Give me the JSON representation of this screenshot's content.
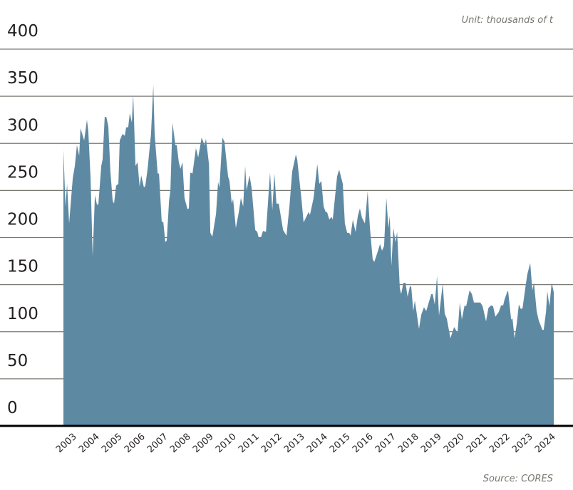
{
  "chart_data": {
    "type": "area",
    "title": "",
    "unit_note": "Unit: thousands of t",
    "source": "Source: CORES",
    "xlabel": "",
    "ylabel": "",
    "ylim": [
      0,
      400
    ],
    "yticks": [
      0,
      50,
      100,
      150,
      200,
      250,
      300,
      350,
      400
    ],
    "xticks": [
      "2003",
      "2004",
      "2005",
      "2006",
      "2007",
      "2008",
      "2009",
      "2010",
      "2011",
      "2012",
      "2013",
      "2014",
      "2015",
      "2016",
      "2017",
      "2018",
      "2019",
      "2020",
      "2021",
      "2022",
      "2023",
      "2024"
    ],
    "grid": true,
    "fill_color": "#5e89a3",
    "grid_color": "#7a7a72",
    "series": [
      {
        "points": [
          [
            2003.0,
            293
          ],
          [
            2003.09,
            233
          ],
          [
            2003.16,
            257
          ],
          [
            2003.25,
            215
          ],
          [
            2003.41,
            263
          ],
          [
            2003.5,
            276
          ],
          [
            2003.59,
            298
          ],
          [
            2003.69,
            287
          ],
          [
            2003.75,
            316
          ],
          [
            2003.91,
            303
          ],
          [
            2004.03,
            325
          ],
          [
            2004.09,
            313
          ],
          [
            2004.19,
            263
          ],
          [
            2004.28,
            180
          ],
          [
            2004.38,
            245
          ],
          [
            2004.47,
            235
          ],
          [
            2004.53,
            235
          ],
          [
            2004.66,
            276
          ],
          [
            2004.72,
            283
          ],
          [
            2004.81,
            328
          ],
          [
            2004.88,
            328
          ],
          [
            2004.97,
            318
          ],
          [
            2005.06,
            270
          ],
          [
            2005.16,
            239
          ],
          [
            2005.22,
            236
          ],
          [
            2005.31,
            255
          ],
          [
            2005.41,
            257
          ],
          [
            2005.47,
            303
          ],
          [
            2005.59,
            310
          ],
          [
            2005.69,
            308
          ],
          [
            2005.75,
            317
          ],
          [
            2005.84,
            317
          ],
          [
            2005.91,
            332
          ],
          [
            2006.0,
            322
          ],
          [
            2006.06,
            352
          ],
          [
            2006.16,
            276
          ],
          [
            2006.25,
            280
          ],
          [
            2006.34,
            254
          ],
          [
            2006.41,
            266
          ],
          [
            2006.53,
            253
          ],
          [
            2006.59,
            255
          ],
          [
            2006.69,
            273
          ],
          [
            2006.84,
            310
          ],
          [
            2006.94,
            362
          ],
          [
            2007.0,
            310
          ],
          [
            2007.13,
            268
          ],
          [
            2007.19,
            268
          ],
          [
            2007.31,
            217
          ],
          [
            2007.38,
            216
          ],
          [
            2007.47,
            195
          ],
          [
            2007.53,
            197
          ],
          [
            2007.63,
            239
          ],
          [
            2007.69,
            250
          ],
          [
            2007.78,
            322
          ],
          [
            2007.91,
            298
          ],
          [
            2007.97,
            298
          ],
          [
            2008.06,
            280
          ],
          [
            2008.13,
            273
          ],
          [
            2008.22,
            280
          ],
          [
            2008.31,
            242
          ],
          [
            2008.44,
            230
          ],
          [
            2008.5,
            231
          ],
          [
            2008.56,
            269
          ],
          [
            2008.66,
            268
          ],
          [
            2008.81,
            295
          ],
          [
            2008.91,
            285
          ],
          [
            2009.06,
            306
          ],
          [
            2009.19,
            298
          ],
          [
            2009.25,
            305
          ],
          [
            2009.38,
            278
          ],
          [
            2009.44,
            205
          ],
          [
            2009.53,
            201
          ],
          [
            2009.69,
            225
          ],
          [
            2009.78,
            259
          ],
          [
            2009.84,
            253
          ],
          [
            2009.97,
            306
          ],
          [
            2010.06,
            302
          ],
          [
            2010.22,
            265
          ],
          [
            2010.28,
            260
          ],
          [
            2010.38,
            236
          ],
          [
            2010.44,
            241
          ],
          [
            2010.56,
            210
          ],
          [
            2010.69,
            227
          ],
          [
            2010.78,
            242
          ],
          [
            2010.88,
            233
          ],
          [
            2010.97,
            276
          ],
          [
            2011.03,
            250
          ],
          [
            2011.16,
            266
          ],
          [
            2011.25,
            253
          ],
          [
            2011.41,
            208
          ],
          [
            2011.5,
            206
          ],
          [
            2011.56,
            200
          ],
          [
            2011.66,
            200
          ],
          [
            2011.75,
            207
          ],
          [
            2011.88,
            206
          ],
          [
            2011.94,
            227
          ],
          [
            2012.06,
            269
          ],
          [
            2012.16,
            229
          ],
          [
            2012.25,
            268
          ],
          [
            2012.34,
            236
          ],
          [
            2012.44,
            236
          ],
          [
            2012.63,
            208
          ],
          [
            2012.78,
            202
          ],
          [
            2012.91,
            233
          ],
          [
            2013.03,
            270
          ],
          [
            2013.19,
            288
          ],
          [
            2013.25,
            283
          ],
          [
            2013.44,
            240
          ],
          [
            2013.53,
            216
          ],
          [
            2013.75,
            227
          ],
          [
            2013.81,
            224
          ],
          [
            2013.97,
            242
          ],
          [
            2014.13,
            278
          ],
          [
            2014.22,
            257
          ],
          [
            2014.31,
            260
          ],
          [
            2014.41,
            233
          ],
          [
            2014.5,
            227
          ],
          [
            2014.56,
            227
          ],
          [
            2014.66,
            219
          ],
          [
            2014.75,
            222
          ],
          [
            2014.81,
            219
          ],
          [
            2015.0,
            265
          ],
          [
            2015.09,
            272
          ],
          [
            2015.25,
            257
          ],
          [
            2015.34,
            215
          ],
          [
            2015.44,
            205
          ],
          [
            2015.53,
            205
          ],
          [
            2015.59,
            202
          ],
          [
            2015.69,
            219
          ],
          [
            2015.81,
            206
          ],
          [
            2015.91,
            223
          ],
          [
            2016.0,
            231
          ],
          [
            2016.09,
            221
          ],
          [
            2016.22,
            215
          ],
          [
            2016.34,
            249
          ],
          [
            2016.44,
            210
          ],
          [
            2016.56,
            177
          ],
          [
            2016.63,
            174
          ],
          [
            2016.78,
            185
          ],
          [
            2016.88,
            193
          ],
          [
            2016.97,
            186
          ],
          [
            2017.06,
            191
          ],
          [
            2017.16,
            242
          ],
          [
            2017.25,
            210
          ],
          [
            2017.31,
            223
          ],
          [
            2017.38,
            170
          ],
          [
            2017.47,
            210
          ],
          [
            2017.56,
            195
          ],
          [
            2017.63,
            206
          ],
          [
            2017.75,
            146
          ],
          [
            2017.81,
            140
          ],
          [
            2017.91,
            152
          ],
          [
            2018.0,
            152
          ],
          [
            2018.09,
            137
          ],
          [
            2018.19,
            148
          ],
          [
            2018.25,
            148
          ],
          [
            2018.34,
            122
          ],
          [
            2018.41,
            133
          ],
          [
            2018.59,
            103
          ],
          [
            2018.69,
            118
          ],
          [
            2018.81,
            126
          ],
          [
            2018.91,
            122
          ],
          [
            2019.03,
            132
          ],
          [
            2019.13,
            140
          ],
          [
            2019.19,
            140
          ],
          [
            2019.28,
            129
          ],
          [
            2019.38,
            159
          ],
          [
            2019.47,
            117
          ],
          [
            2019.63,
            151
          ],
          [
            2019.72,
            119
          ],
          [
            2019.81,
            114
          ],
          [
            2019.97,
            93
          ],
          [
            2020.13,
            105
          ],
          [
            2020.28,
            99
          ],
          [
            2020.38,
            131
          ],
          [
            2020.47,
            113
          ],
          [
            2020.59,
            128
          ],
          [
            2020.66,
            127
          ],
          [
            2020.81,
            144
          ],
          [
            2020.91,
            140
          ],
          [
            2021.0,
            131
          ],
          [
            2021.16,
            131
          ],
          [
            2021.28,
            131
          ],
          [
            2021.38,
            127
          ],
          [
            2021.53,
            111
          ],
          [
            2021.63,
            125
          ],
          [
            2021.75,
            128
          ],
          [
            2021.84,
            127
          ],
          [
            2021.94,
            116
          ],
          [
            2022.09,
            121
          ],
          [
            2022.19,
            128
          ],
          [
            2022.28,
            128
          ],
          [
            2022.34,
            134
          ],
          [
            2022.47,
            143
          ],
          [
            2022.5,
            143
          ],
          [
            2022.63,
            113
          ],
          [
            2022.69,
            114
          ],
          [
            2022.78,
            93
          ],
          [
            2022.88,
            109
          ],
          [
            2022.97,
            129
          ],
          [
            2023.06,
            124
          ],
          [
            2023.13,
            125
          ],
          [
            2023.25,
            146
          ],
          [
            2023.34,
            161
          ],
          [
            2023.47,
            173
          ],
          [
            2023.56,
            144
          ],
          [
            2023.63,
            152
          ],
          [
            2023.75,
            122
          ],
          [
            2023.84,
            112
          ],
          [
            2024.0,
            102
          ],
          [
            2024.06,
            102
          ],
          [
            2024.16,
            121
          ],
          [
            2024.22,
            143
          ],
          [
            2024.31,
            127
          ],
          [
            2024.41,
            152
          ],
          [
            2024.5,
            142
          ]
        ]
      }
    ]
  }
}
